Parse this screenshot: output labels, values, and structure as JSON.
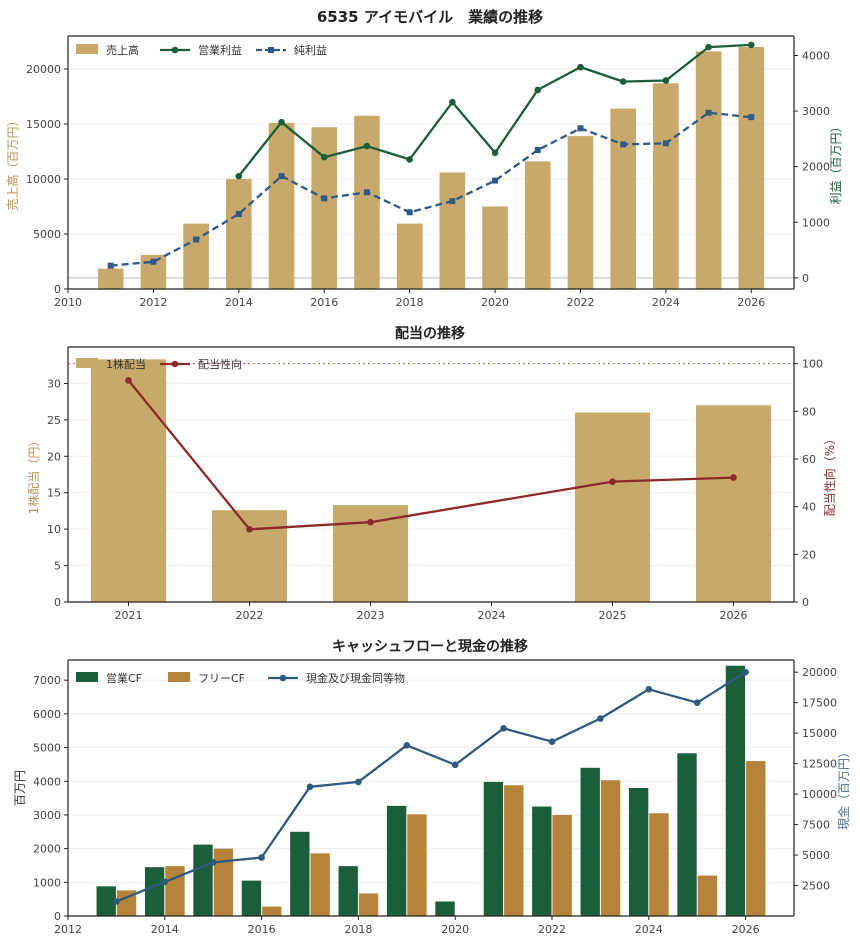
{
  "chart_data": [
    {
      "type": "bar+line",
      "title": "6535 アイモバイル　業績の推移",
      "ylabel_left": "売上高（百万円）",
      "ylabel_right": "利益（百万円）",
      "xlim": [
        2010,
        2027
      ],
      "ylim_left": [
        0,
        23000
      ],
      "ylim_right": [
        -200,
        4350
      ],
      "xticks": [
        "2010",
        "2012",
        "2014",
        "2016",
        "2018",
        "2020",
        "2022",
        "2024",
        "2026"
      ],
      "yticks_left": [
        "0",
        "5000",
        "10000",
        "15000",
        "20000"
      ],
      "yticks_right": [
        "0",
        "1000",
        "2000",
        "3000",
        "4000"
      ],
      "legend": [
        "売上高",
        "営業利益",
        "純利益"
      ],
      "x": [
        2011,
        2012,
        2013,
        2014,
        2015,
        2016,
        2017,
        2018,
        2019,
        2020,
        2021,
        2022,
        2023,
        2024,
        2025,
        2026
      ],
      "series": [
        {
          "name": "売上高",
          "kind": "bar",
          "axis": "left",
          "color": "#C8A96B",
          "values": [
            1850,
            3100,
            5950,
            10000,
            15100,
            14700,
            15750,
            5950,
            10600,
            7500,
            11600,
            13900,
            16400,
            18700,
            21600,
            22000
          ]
        },
        {
          "name": "営業利益",
          "kind": "line",
          "axis": "right",
          "color": "#1B5E3A",
          "marker": "circle",
          "values": [
            null,
            null,
            null,
            1830,
            2800,
            2170,
            2370,
            2130,
            3160,
            2250,
            3380,
            3790,
            3530,
            3550,
            4150,
            4190
          ]
        },
        {
          "name": "純利益",
          "kind": "line",
          "axis": "right",
          "color": "#2E5A88",
          "marker": "square",
          "dashed": true,
          "values": [
            220,
            290,
            690,
            1150,
            1830,
            1430,
            1540,
            1180,
            1380,
            1750,
            2300,
            2690,
            2400,
            2420,
            2970,
            2890
          ]
        }
      ]
    },
    {
      "type": "bar+line",
      "title": "配当の推移",
      "ylabel_left": "1株配当（円）",
      "ylabel_right": "配当性向（%）",
      "categories": [
        "2021",
        "2022",
        "2023",
        "2024",
        "2025",
        "2026"
      ],
      "ylim_left": [
        0,
        35
      ],
      "ylim_right": [
        0,
        107
      ],
      "yticks_left": [
        "0",
        "5",
        "10",
        "15",
        "20",
        "25",
        "30"
      ],
      "yticks_right": [
        "0",
        "20",
        "40",
        "60",
        "80",
        "100"
      ],
      "reference_line_right": 100,
      "legend": [
        "1株配当",
        "配当性向"
      ],
      "series": [
        {
          "name": "1株配当",
          "kind": "bar",
          "axis": "left",
          "color": "#C8A96B",
          "values": [
            33.3,
            12.6,
            13.3,
            null,
            26.0,
            27.0
          ]
        },
        {
          "name": "配当性向",
          "kind": "line",
          "axis": "right",
          "color": "#8B2A2A",
          "marker": "circle",
          "values": [
            93,
            30.5,
            33.5,
            null,
            50.5,
            52.2
          ]
        }
      ]
    },
    {
      "type": "bar+line",
      "title": "キャッシュフローと現金の推移",
      "ylabel_left": "百万円",
      "ylabel_right": "現金（百万円）",
      "xlim": [
        2012,
        2027
      ],
      "ylim_left": [
        0,
        7600
      ],
      "ylim_right": [
        0,
        21000
      ],
      "xticks": [
        "2012",
        "2014",
        "2016",
        "2018",
        "2020",
        "2022",
        "2024",
        "2026"
      ],
      "yticks_left": [
        "0",
        "1000",
        "2000",
        "3000",
        "4000",
        "5000",
        "6000",
        "7000"
      ],
      "yticks_right": [
        "2500",
        "5000",
        "7500",
        "10000",
        "12500",
        "15000",
        "17500",
        "20000"
      ],
      "legend": [
        "営業CF",
        "フリーCF",
        "現金及び現金同等物"
      ],
      "x": [
        2013,
        2014,
        2015,
        2016,
        2017,
        2018,
        2019,
        2020,
        2021,
        2022,
        2023,
        2024,
        2025,
        2026
      ],
      "series": [
        {
          "name": "営業CF",
          "kind": "bar",
          "axis": "left",
          "color": "#1B5E3A",
          "values": [
            880,
            1450,
            2120,
            1050,
            2500,
            1480,
            3270,
            430,
            3980,
            3250,
            4400,
            3800,
            4830,
            7430
          ]
        },
        {
          "name": "フリーCF",
          "kind": "bar",
          "axis": "left",
          "color": "#B5833A",
          "values": [
            760,
            1480,
            2000,
            280,
            1860,
            670,
            3020,
            null,
            3880,
            3000,
            4030,
            3050,
            1200,
            4600
          ]
        },
        {
          "name": "現金及び現金同等物",
          "kind": "line",
          "axis": "right",
          "color": "#2E5A80",
          "marker": "circle",
          "values": [
            1200,
            2800,
            4400,
            4800,
            10600,
            11000,
            14000,
            12400,
            15400,
            14300,
            16200,
            18600,
            17500,
            20000
          ]
        }
      ]
    }
  ]
}
